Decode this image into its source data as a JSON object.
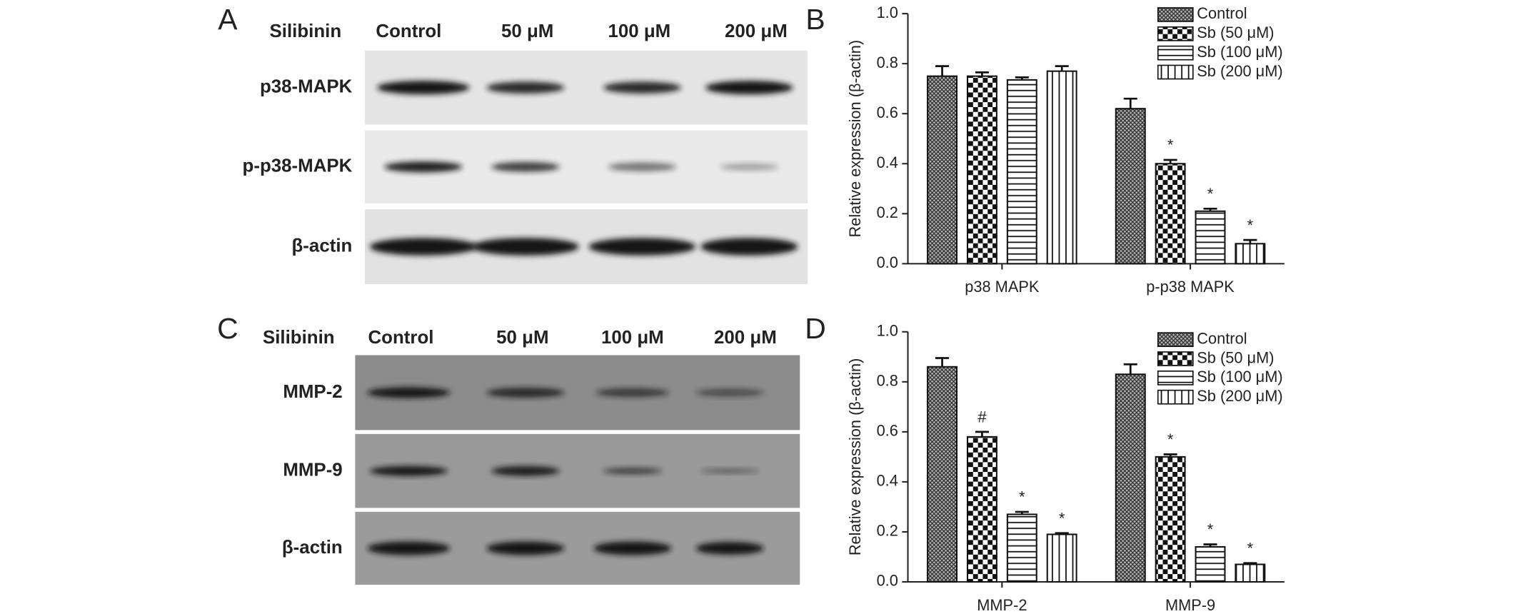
{
  "panel_labels": [
    "A",
    "B",
    "C",
    "D"
  ],
  "blots": [
    {
      "treatment_label": "Silibinin",
      "lanes": [
        "Control",
        "50 μM",
        "100 μM",
        "200 μM"
      ],
      "rows": [
        "p38-MAPK",
        "p-p38-MAPK",
        "β-actin"
      ]
    },
    {
      "treatment_label": "Silibinin",
      "lanes": [
        "Control",
        "50 μM",
        "100 μM",
        "200 μM"
      ],
      "rows": [
        "MMP-2",
        "MMP-9",
        "β-actin"
      ]
    }
  ],
  "chart_data": [
    {
      "type": "bar",
      "y_label": "Relative expression (β-actin)",
      "categories": [
        "p38 MAPK",
        "p-p38 MAPK"
      ],
      "series": [
        {
          "name": "Control",
          "values": [
            0.75,
            0.62
          ],
          "errors": [
            0.04,
            0.04
          ],
          "annotations": [
            null,
            null
          ]
        },
        {
          "name": "Sb (50 μM)",
          "values": [
            0.75,
            0.4
          ],
          "errors": [
            0.015,
            0.015
          ],
          "annotations": [
            null,
            "*"
          ]
        },
        {
          "name": "Sb (100 μM)",
          "values": [
            0.735,
            0.21
          ],
          "errors": [
            0.01,
            0.01
          ],
          "annotations": [
            null,
            "*"
          ]
        },
        {
          "name": "Sb (200 μM)",
          "values": [
            0.77,
            0.08
          ],
          "errors": [
            0.02,
            0.015
          ],
          "annotations": [
            null,
            "*"
          ]
        }
      ],
      "ylim": [
        0,
        1
      ],
      "yticks": [
        {
          "value": 0,
          "label": "0.0"
        },
        0.2,
        0.4,
        0.6,
        0.8,
        {
          "value": 1,
          "label": "1.0"
        }
      ]
    },
    {
      "type": "bar",
      "y_label": "Relative expression (β-actin)",
      "categories": [
        "MMP-2",
        "MMP-9"
      ],
      "series": [
        {
          "name": "Control",
          "values": [
            0.86,
            0.83
          ],
          "errors": [
            0.035,
            0.04
          ],
          "annotations": [
            null,
            null
          ]
        },
        {
          "name": "Sb (50 μM)",
          "values": [
            0.58,
            0.5
          ],
          "errors": [
            0.02,
            0.01
          ],
          "annotations": [
            "#",
            "*"
          ]
        },
        {
          "name": "Sb (100 μM)",
          "values": [
            0.27,
            0.14
          ],
          "errors": [
            0.01,
            0.01
          ],
          "annotations": [
            "*",
            "*"
          ]
        },
        {
          "name": "Sb (200 μM)",
          "values": [
            0.19,
            0.07
          ],
          "errors": [
            0.005,
            0.005
          ],
          "annotations": [
            "*",
            "*"
          ]
        }
      ],
      "ylim": [
        0,
        1
      ],
      "yticks": [
        {
          "value": 0,
          "label": "0.0"
        },
        0.2,
        0.4,
        0.6,
        0.8,
        {
          "value": 1,
          "label": "1.0"
        }
      ]
    }
  ]
}
